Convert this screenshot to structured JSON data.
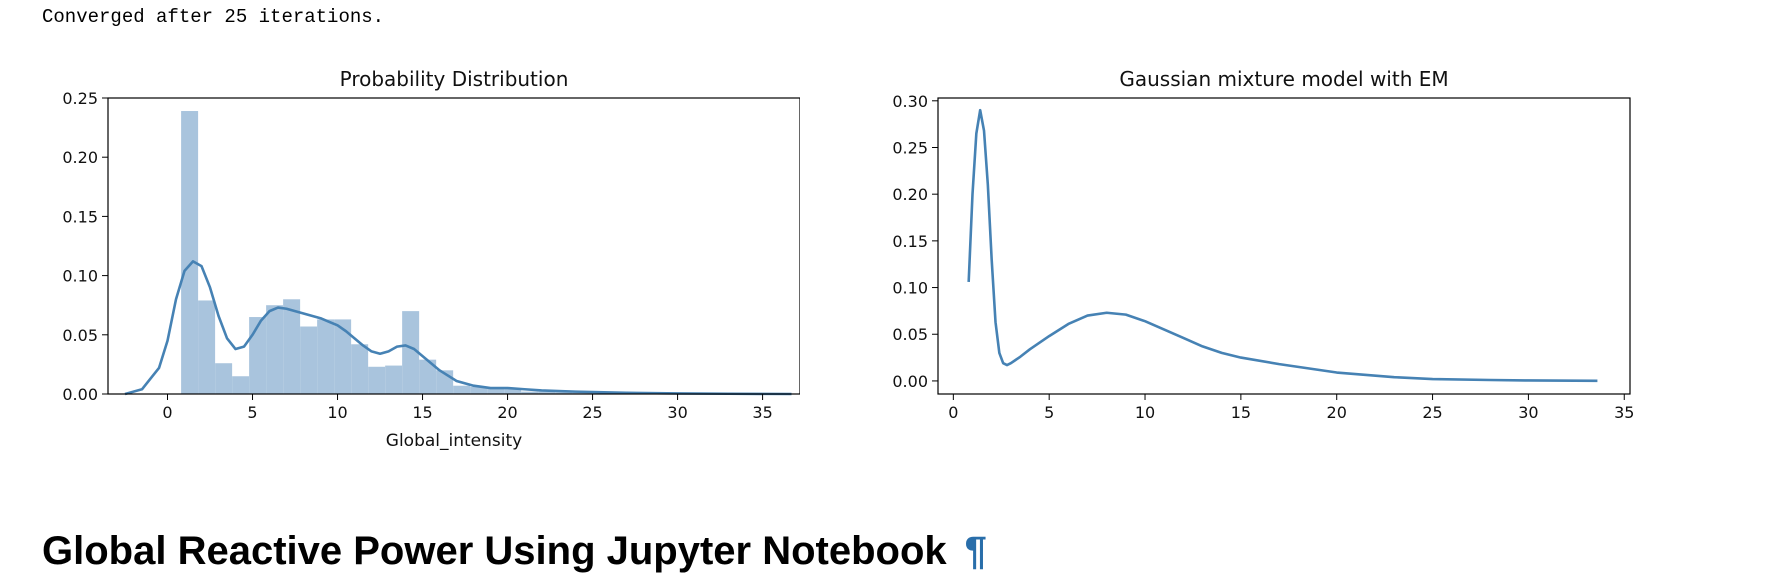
{
  "output": {
    "console_text": "Converged after 25 iterations."
  },
  "section": {
    "heading": "Global Reactive Power Using Jupyter Notebook",
    "anchor_glyph": "¶"
  },
  "colors": {
    "line": "#4682b4",
    "hist_fill": "#a9c4dd",
    "axis": "#000000"
  },
  "chart_data": [
    {
      "type": "bar",
      "title": "Probability Distribution",
      "xlabel": "Global_intensity",
      "ylabel": "",
      "xlim": [
        -3.5,
        37.2
      ],
      "ylim": [
        0,
        0.25
      ],
      "xticks": [
        0,
        5,
        10,
        15,
        20,
        25,
        30,
        35
      ],
      "yticks": [
        0.0,
        0.05,
        0.1,
        0.15,
        0.2,
        0.25
      ],
      "xtick_labels": [
        "0",
        "5",
        "10",
        "15",
        "20",
        "25",
        "30",
        "35"
      ],
      "ytick_labels": [
        "0.00",
        "0.05",
        "0.10",
        "0.15",
        "0.20",
        "0.25"
      ],
      "grid": false,
      "bins": {
        "edges": [
          0.8,
          1.8,
          2.8,
          3.8,
          4.8,
          5.8,
          6.8,
          7.8,
          8.8,
          9.8,
          10.8,
          11.8,
          12.8,
          13.8,
          14.8,
          15.8,
          16.8,
          17.8,
          18.8,
          19.8,
          20.8,
          21.8,
          22.8,
          23.8,
          24.8,
          25.8,
          26.8,
          27.8,
          28.8,
          29.8,
          30.8,
          31.8,
          32.8,
          33.8,
          34.8,
          35.8,
          36.8
        ],
        "values": [
          0.239,
          0.079,
          0.026,
          0.015,
          0.065,
          0.075,
          0.08,
          0.057,
          0.063,
          0.063,
          0.042,
          0.023,
          0.024,
          0.07,
          0.029,
          0.02,
          0.007,
          0.006,
          0.005,
          0.004,
          0.002,
          0.002,
          0.0015,
          0.0012,
          0.001,
          0.0008,
          0.0006,
          0.0005,
          0.0004,
          0.0004,
          0.0003,
          0.0003,
          0.0002,
          0.0002,
          0.0002,
          0.0001
        ]
      },
      "series": [
        {
          "x": [
            -2.5,
            -1.5,
            -0.5,
            0.0,
            0.5,
            1.0,
            1.5,
            2.0,
            2.5,
            3.0,
            3.5,
            4.0,
            4.5,
            5.0,
            5.5,
            6.0,
            6.5,
            7.0,
            7.5,
            8.0,
            8.5,
            9.0,
            9.5,
            10.0,
            10.5,
            11.0,
            11.5,
            12.0,
            12.5,
            13.0,
            13.5,
            14.0,
            14.5,
            15.0,
            15.5,
            16.0,
            17.0,
            18.0,
            19.0,
            20.0,
            21.0,
            22.0,
            24.0,
            27.0,
            30.0,
            33.0,
            36.7
          ],
          "values": [
            0.0,
            0.004,
            0.022,
            0.045,
            0.08,
            0.104,
            0.112,
            0.108,
            0.09,
            0.066,
            0.047,
            0.038,
            0.04,
            0.05,
            0.062,
            0.07,
            0.073,
            0.072,
            0.07,
            0.068,
            0.066,
            0.064,
            0.061,
            0.058,
            0.053,
            0.047,
            0.041,
            0.036,
            0.034,
            0.036,
            0.04,
            0.041,
            0.038,
            0.032,
            0.026,
            0.02,
            0.011,
            0.007,
            0.005,
            0.005,
            0.004,
            0.003,
            0.002,
            0.001,
            0.0005,
            0.0002,
            0.0
          ]
        }
      ]
    },
    {
      "type": "line",
      "title": "Gaussian mixture model with EM",
      "xlabel": "",
      "ylabel": "",
      "xlim": [
        -0.8,
        35.3
      ],
      "ylim": [
        -0.014,
        0.303
      ],
      "xticks": [
        0,
        5,
        10,
        15,
        20,
        25,
        30,
        35
      ],
      "yticks": [
        0.0,
        0.05,
        0.1,
        0.15,
        0.2,
        0.25,
        0.3
      ],
      "xtick_labels": [
        "0",
        "5",
        "10",
        "15",
        "20",
        "25",
        "30",
        "35"
      ],
      "ytick_labels": [
        "0.00",
        "0.05",
        "0.10",
        "0.15",
        "0.20",
        "0.25",
        "0.30"
      ],
      "grid": false,
      "series": [
        {
          "x": [
            0.8,
            1.0,
            1.2,
            1.4,
            1.6,
            1.8,
            2.0,
            2.2,
            2.4,
            2.6,
            2.8,
            3.0,
            3.5,
            4.0,
            5.0,
            6.0,
            7.0,
            8.0,
            9.0,
            10.0,
            11.0,
            12.0,
            13.0,
            14.0,
            15.0,
            17.0,
            20.0,
            23.0,
            25.0,
            28.0,
            30.0,
            33.6
          ],
          "values": [
            0.106,
            0.2,
            0.265,
            0.29,
            0.268,
            0.21,
            0.13,
            0.063,
            0.03,
            0.019,
            0.017,
            0.019,
            0.026,
            0.034,
            0.048,
            0.061,
            0.07,
            0.073,
            0.071,
            0.064,
            0.055,
            0.046,
            0.037,
            0.03,
            0.025,
            0.018,
            0.009,
            0.004,
            0.002,
            0.001,
            0.0005,
            0.0001
          ]
        }
      ]
    }
  ]
}
